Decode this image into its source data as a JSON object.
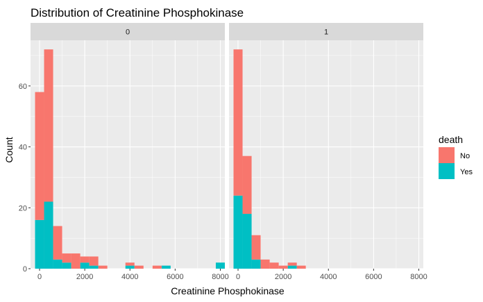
{
  "chart_data": {
    "type": "histogram",
    "title": "Distribution of Creatinine Phosphokinase",
    "xlabel": "Creatinine Phosphokinase",
    "ylabel": "Count",
    "facet_variable": "",
    "facets": [
      "0",
      "1"
    ],
    "xlim": [
      -400,
      8200
    ],
    "ylim": [
      0,
      75
    ],
    "x_ticks": [
      0,
      2000,
      4000,
      6000,
      8000
    ],
    "y_ticks": [
      0,
      20,
      40,
      60
    ],
    "bin_width": 400,
    "bin_centers": [
      0,
      400,
      800,
      1200,
      1600,
      2000,
      2400,
      2800,
      3200,
      3600,
      4000,
      4400,
      4800,
      5200,
      5600,
      6000,
      6400,
      6800,
      7200,
      7600,
      8000
    ],
    "stacked": true,
    "legend": {
      "title": "death",
      "position": "right",
      "entries": [
        {
          "label": "No",
          "color": "#F8766D"
        },
        {
          "label": "Yes",
          "color": "#00BFC4"
        }
      ]
    },
    "panels": [
      {
        "facet": "0",
        "series": [
          {
            "name": "Yes",
            "color": "#00BFC4",
            "values": [
              16,
              22,
              3,
              2,
              0,
              2,
              1,
              0,
              0,
              0,
              1,
              0,
              0,
              0,
              1,
              0,
              0,
              0,
              0,
              0,
              2
            ]
          },
          {
            "name": "No",
            "color": "#F8766D",
            "values": [
              42,
              50,
              11,
              3,
              5,
              2,
              3,
              1,
              0,
              0,
              1,
              1,
              0,
              1,
              0,
              0,
              0,
              0,
              0,
              0,
              0
            ]
          }
        ]
      },
      {
        "facet": "1",
        "series": [
          {
            "name": "Yes",
            "color": "#00BFC4",
            "values": [
              24,
              18,
              3,
              0,
              0,
              0,
              1,
              0,
              0,
              0,
              0,
              0,
              0,
              0,
              0,
              0,
              0,
              0,
              0,
              0,
              0
            ]
          },
          {
            "name": "No",
            "color": "#F8766D",
            "values": [
              48,
              19,
              8,
              3,
              2,
              1,
              1,
              1,
              0,
              0,
              0,
              0,
              0,
              0,
              0,
              0,
              0,
              0,
              0,
              0,
              0
            ]
          }
        ]
      }
    ],
    "grid": true
  }
}
